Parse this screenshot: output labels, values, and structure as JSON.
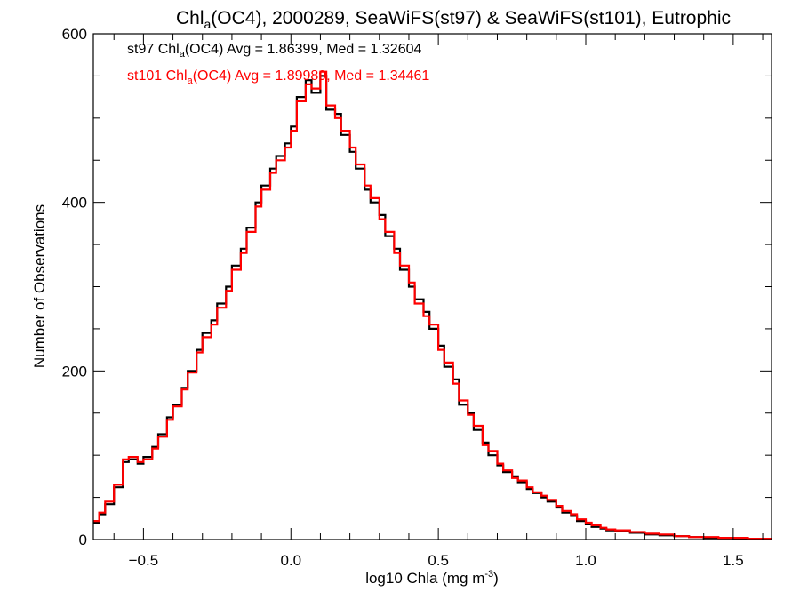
{
  "chart_data": {
    "type": "line",
    "title": {
      "prefix": "Chl",
      "sub": "a",
      "suffix": "(OC4), 2000289, SeaWiFS(st97) & SeaWiFS(st101), Eutrophic"
    },
    "xlabel": {
      "prefix": "log10 Chla (mg m",
      "sup": "-3",
      "suffix": ")"
    },
    "ylabel": "Number of Observations",
    "xlim": [
      -0.67,
      1.63
    ],
    "ylim": [
      0,
      600
    ],
    "x_ticks": [
      -0.5,
      0.0,
      0.5,
      1.0,
      1.5
    ],
    "x_tick_labels": [
      "−0.5",
      "0.0",
      "0.5",
      "1.0",
      "1.5"
    ],
    "y_ticks": [
      0,
      200,
      400,
      600
    ],
    "y_tick_labels": [
      "0",
      "200",
      "400",
      "600"
    ],
    "grid": false,
    "annotations": [
      {
        "prefix": "st97 Chl",
        "sub": "a",
        "suffix": "(OC4) Avg = 1.86399, Med = 1.32604",
        "color": "#000000"
      },
      {
        "prefix": "st101 Chl",
        "sub": "a",
        "suffix": "(OC4) Avg = 1.89989, Med = 1.34461",
        "color": "#ff0000"
      }
    ],
    "series": [
      {
        "color": "#000000",
        "x": [
          -0.67,
          -0.65,
          -0.63,
          -0.6,
          -0.57,
          -0.55,
          -0.52,
          -0.5,
          -0.47,
          -0.45,
          -0.42,
          -0.4,
          -0.37,
          -0.35,
          -0.32,
          -0.3,
          -0.27,
          -0.25,
          -0.22,
          -0.2,
          -0.17,
          -0.15,
          -0.12,
          -0.1,
          -0.07,
          -0.05,
          -0.02,
          0.0,
          0.02,
          0.05,
          0.07,
          0.1,
          0.12,
          0.15,
          0.17,
          0.2,
          0.22,
          0.25,
          0.27,
          0.3,
          0.32,
          0.35,
          0.37,
          0.4,
          0.42,
          0.45,
          0.47,
          0.5,
          0.52,
          0.55,
          0.57,
          0.6,
          0.62,
          0.65,
          0.67,
          0.7,
          0.72,
          0.75,
          0.77,
          0.8,
          0.82,
          0.85,
          0.87,
          0.9,
          0.92,
          0.95,
          0.97,
          1.0,
          1.02,
          1.05,
          1.07,
          1.1,
          1.15,
          1.2,
          1.25,
          1.3,
          1.35,
          1.4,
          1.45,
          1.5,
          1.55,
          1.63
        ],
        "y": [
          20,
          30,
          42,
          62,
          92,
          95,
          90,
          98,
          110,
          125,
          145,
          160,
          180,
          200,
          225,
          245,
          260,
          280,
          300,
          325,
          345,
          370,
          400,
          420,
          440,
          455,
          470,
          490,
          525,
          545,
          530,
          550,
          510,
          505,
          480,
          460,
          440,
          415,
          400,
          385,
          360,
          345,
          320,
          300,
          285,
          270,
          250,
          230,
          205,
          190,
          160,
          150,
          130,
          115,
          100,
          88,
          80,
          75,
          68,
          60,
          55,
          50,
          45,
          38,
          32,
          28,
          22,
          18,
          15,
          13,
          11,
          10,
          8,
          6,
          5,
          4,
          3,
          2,
          2,
          1,
          1,
          1
        ]
      },
      {
        "color": "#ff0000",
        "x": [
          -0.67,
          -0.65,
          -0.63,
          -0.6,
          -0.57,
          -0.55,
          -0.52,
          -0.5,
          -0.47,
          -0.45,
          -0.42,
          -0.4,
          -0.37,
          -0.35,
          -0.32,
          -0.3,
          -0.27,
          -0.25,
          -0.22,
          -0.2,
          -0.17,
          -0.15,
          -0.12,
          -0.1,
          -0.07,
          -0.05,
          -0.02,
          0.0,
          0.02,
          0.05,
          0.07,
          0.1,
          0.12,
          0.15,
          0.17,
          0.2,
          0.22,
          0.25,
          0.27,
          0.3,
          0.32,
          0.35,
          0.37,
          0.4,
          0.42,
          0.45,
          0.47,
          0.5,
          0.52,
          0.55,
          0.57,
          0.6,
          0.62,
          0.65,
          0.67,
          0.7,
          0.72,
          0.75,
          0.77,
          0.8,
          0.82,
          0.85,
          0.87,
          0.9,
          0.92,
          0.95,
          0.97,
          1.0,
          1.02,
          1.05,
          1.07,
          1.1,
          1.15,
          1.2,
          1.25,
          1.3,
          1.35,
          1.4,
          1.45,
          1.5,
          1.55,
          1.63
        ],
        "y": [
          22,
          32,
          45,
          65,
          95,
          98,
          92,
          95,
          108,
          122,
          142,
          158,
          178,
          198,
          222,
          240,
          255,
          275,
          295,
          320,
          340,
          365,
          395,
          415,
          435,
          450,
          465,
          485,
          520,
          540,
          535,
          555,
          515,
          500,
          485,
          465,
          445,
          420,
          405,
          380,
          365,
          340,
          325,
          305,
          280,
          265,
          255,
          225,
          210,
          185,
          165,
          148,
          135,
          112,
          105,
          90,
          82,
          73,
          70,
          62,
          56,
          52,
          47,
          40,
          34,
          30,
          24,
          20,
          17,
          14,
          12,
          11,
          9,
          7,
          6,
          4,
          3,
          3,
          2,
          2,
          1,
          1
        ]
      }
    ]
  }
}
